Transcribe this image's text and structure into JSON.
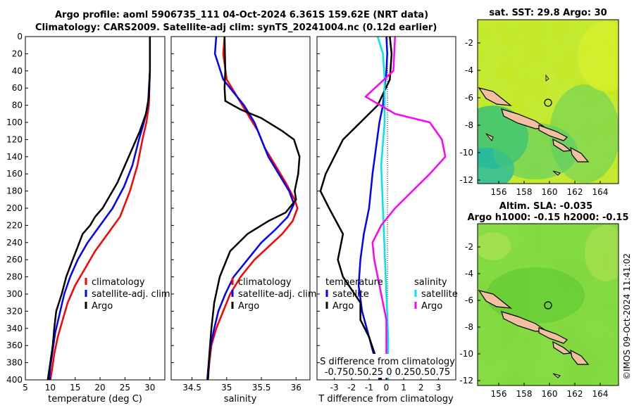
{
  "title": {
    "line1": "Argo profile: aoml 5906735_111 04-Oct-2024 6.361S 159.62E (NRT data)",
    "line2": "Climatology: CARS2009. Satellite-adj clim: synTS_20241004.nc (0.12d earlier)"
  },
  "credit": "©IMOS 09-Oct-2024 11:41:02",
  "colors": {
    "climatology": "#ff0000",
    "satellite": "#0000ff",
    "argo": "#000000",
    "sat_salinity": "#00e5e5",
    "argo_salinity": "#ff00ff"
  },
  "chart_data": [
    {
      "type": "line",
      "id": "temperature",
      "xlabel": "temperature (deg C)",
      "xlim": [
        5,
        33
      ],
      "ylim": [
        400,
        0
      ],
      "xticks": [
        5,
        10,
        15,
        20,
        25,
        30
      ],
      "xtick_labels": [
        "5",
        "10",
        "15",
        "20",
        "25",
        "30"
      ],
      "yticks": [
        0,
        20,
        40,
        60,
        80,
        100,
        120,
        140,
        160,
        180,
        200,
        220,
        240,
        260,
        280,
        300,
        320,
        340,
        360,
        380,
        400
      ],
      "legend": [
        "climatology",
        "satellite-adj. clim",
        "Argo"
      ],
      "series": [
        {
          "name": "climatology",
          "color": "#ff0000",
          "points": [
            [
              30,
              0
            ],
            [
              30,
              40
            ],
            [
              29.8,
              80
            ],
            [
              29.3,
              100
            ],
            [
              28.5,
              120
            ],
            [
              27.5,
              150
            ],
            [
              26,
              180
            ],
            [
              24,
              210
            ],
            [
              21.5,
              230
            ],
            [
              19,
              250
            ],
            [
              17,
              270
            ],
            [
              15,
              290
            ],
            [
              13.5,
              310
            ],
            [
              12.5,
              330
            ],
            [
              11.5,
              350
            ],
            [
              10.8,
              370
            ],
            [
              10.3,
              390
            ],
            [
              10,
              400
            ]
          ]
        },
        {
          "name": "satellite-adj. clim",
          "color": "#0000ff",
          "points": [
            [
              30,
              0
            ],
            [
              30,
              40
            ],
            [
              29.6,
              80
            ],
            [
              28.8,
              100
            ],
            [
              27.8,
              120
            ],
            [
              26.5,
              150
            ],
            [
              24.8,
              175
            ],
            [
              22.5,
              200
            ],
            [
              20,
              220
            ],
            [
              17.5,
              240
            ],
            [
              15.5,
              260
            ],
            [
              14,
              280
            ],
            [
              12.8,
              300
            ],
            [
              12,
              320
            ],
            [
              11,
              345
            ],
            [
              10.5,
              365
            ],
            [
              10,
              385
            ],
            [
              9.8,
              400
            ]
          ]
        },
        {
          "name": "Argo",
          "color": "#000000",
          "points": [
            [
              30,
              0
            ],
            [
              30,
              40
            ],
            [
              29.8,
              70
            ],
            [
              29.2,
              90
            ],
            [
              28,
              110
            ],
            [
              26.5,
              130
            ],
            [
              25,
              150
            ],
            [
              23.5,
              170
            ],
            [
              22,
              185
            ],
            [
              20.5,
              200
            ],
            [
              19,
              210
            ],
            [
              18,
              220
            ],
            [
              16.5,
              230
            ],
            [
              15.5,
              245
            ],
            [
              14.5,
              260
            ],
            [
              13.2,
              280
            ],
            [
              12.3,
              300
            ],
            [
              11.2,
              320
            ],
            [
              10.8,
              340
            ],
            [
              10.5,
              360
            ],
            [
              10,
              380
            ],
            [
              9.5,
              400
            ]
          ]
        }
      ]
    },
    {
      "type": "line",
      "id": "salinity",
      "xlabel": "salinity",
      "xlim": [
        34.2,
        36.2
      ],
      "ylim": [
        400,
        0
      ],
      "xticks": [
        34.5,
        35,
        35.5,
        36
      ],
      "xtick_labels": [
        "34.5",
        "35",
        "35.5",
        "36"
      ],
      "legend": [
        "climatology",
        "satellite-adj. clim",
        "Argo"
      ],
      "series": [
        {
          "name": "climatology",
          "color": "#ff0000",
          "points": [
            [
              34.97,
              0
            ],
            [
              34.95,
              20
            ],
            [
              35.0,
              50
            ],
            [
              35.15,
              70
            ],
            [
              35.3,
              90
            ],
            [
              35.45,
              110
            ],
            [
              35.55,
              130
            ],
            [
              35.7,
              150
            ],
            [
              35.85,
              170
            ],
            [
              35.98,
              190
            ],
            [
              36.02,
              200
            ],
            [
              35.95,
              215
            ],
            [
              35.8,
              230
            ],
            [
              35.6,
              245
            ],
            [
              35.4,
              260
            ],
            [
              35.2,
              280
            ],
            [
              35.05,
              300
            ],
            [
              34.95,
              320
            ],
            [
              34.85,
              340
            ],
            [
              34.78,
              360
            ],
            [
              34.75,
              380
            ],
            [
              34.73,
              400
            ]
          ]
        },
        {
          "name": "satellite-adj. clim",
          "color": "#0000ff",
          "points": [
            [
              34.85,
              0
            ],
            [
              34.83,
              20
            ],
            [
              34.95,
              50
            ],
            [
              35.1,
              65
            ],
            [
              35.25,
              80
            ],
            [
              35.4,
              100
            ],
            [
              35.5,
              120
            ],
            [
              35.6,
              140
            ],
            [
              35.75,
              160
            ],
            [
              35.9,
              180
            ],
            [
              35.97,
              195
            ],
            [
              35.88,
              210
            ],
            [
              35.7,
              225
            ],
            [
              35.5,
              240
            ],
            [
              35.3,
              260
            ],
            [
              35.1,
              280
            ],
            [
              34.98,
              300
            ],
            [
              34.88,
              320
            ],
            [
              34.82,
              340
            ],
            [
              34.77,
              360
            ],
            [
              34.74,
              380
            ],
            [
              34.72,
              400
            ]
          ]
        },
        {
          "name": "Argo",
          "color": "#000000",
          "points": [
            [
              34.97,
              0
            ],
            [
              34.98,
              40
            ],
            [
              34.97,
              60
            ],
            [
              34.98,
              75
            ],
            [
              35.2,
              85
            ],
            [
              35.5,
              95
            ],
            [
              35.8,
              110
            ],
            [
              35.97,
              120
            ],
            [
              36.05,
              140
            ],
            [
              36.03,
              160
            ],
            [
              35.98,
              180
            ],
            [
              36.0,
              190
            ],
            [
              35.85,
              205
            ],
            [
              35.6,
              215
            ],
            [
              35.3,
              230
            ],
            [
              35.05,
              250
            ],
            [
              34.9,
              280
            ],
            [
              34.82,
              310
            ],
            [
              34.78,
              340
            ],
            [
              34.75,
              370
            ],
            [
              34.73,
              400
            ]
          ]
        }
      ]
    },
    {
      "type": "line",
      "id": "difference",
      "xlabel": "T difference from climatology",
      "x2label": "S difference from climatology",
      "xlim": [
        -4,
        4
      ],
      "ylim": [
        400,
        0
      ],
      "xticks": [
        -3,
        -2,
        -1,
        0,
        1,
        2,
        3
      ],
      "xtick_labels": [
        "-3",
        "-2",
        "-1",
        "0",
        "1",
        "2",
        "3"
      ],
      "x2ticks_text": "-0.750.50.25 0 0.250.50.75",
      "legend_temperature": {
        "title": "temperature",
        "items": [
          "satellite",
          "Argo"
        ]
      },
      "legend_salinity": {
        "title": "salinity",
        "items": [
          "satellite",
          "Argo"
        ]
      },
      "series": [
        {
          "name": "T satellite",
          "color": "#0000ff",
          "points": [
            [
              0,
              0
            ],
            [
              0.05,
              20
            ],
            [
              0,
              40
            ],
            [
              -0.1,
              60
            ],
            [
              -0.2,
              80
            ],
            [
              -0.4,
              100
            ],
            [
              -0.6,
              130
            ],
            [
              -0.8,
              160
            ],
            [
              -1,
              200
            ],
            [
              -1.3,
              230
            ],
            [
              -1.5,
              260
            ],
            [
              -1.6,
              290
            ],
            [
              -1.4,
              320
            ],
            [
              -1.0,
              350
            ],
            [
              -0.6,
              380
            ],
            [
              -0.4,
              400
            ]
          ]
        },
        {
          "name": "T Argo",
          "color": "#000000",
          "points": [
            [
              0.2,
              0
            ],
            [
              0.3,
              20
            ],
            [
              0.2,
              50
            ],
            [
              -0.5,
              80
            ],
            [
              -1.5,
              100
            ],
            [
              -2.5,
              120
            ],
            [
              -3.5,
              160
            ],
            [
              -3.8,
              180
            ],
            [
              -3.3,
              200
            ],
            [
              -2.5,
              230
            ],
            [
              -2.8,
              260
            ],
            [
              -2.5,
              280
            ],
            [
              -1.5,
              310
            ],
            [
              -1.5,
              330
            ],
            [
              -1.0,
              350
            ],
            [
              -0.5,
              380
            ],
            [
              -0.3,
              400
            ]
          ]
        },
        {
          "name": "S satellite",
          "color": "#00e5e5",
          "points": [
            [
              -0.5,
              0
            ],
            [
              -0.2,
              20
            ],
            [
              -0.1,
              50
            ],
            [
              -0.1,
              100
            ],
            [
              -0.3,
              150
            ],
            [
              -0.2,
              200
            ],
            [
              -0.1,
              250
            ],
            [
              0,
              300
            ],
            [
              0.1,
              350
            ],
            [
              0.1,
              400
            ]
          ]
        },
        {
          "name": "S Argo",
          "color": "#ff00ff",
          "points": [
            [
              0.5,
              0
            ],
            [
              0.4,
              40
            ],
            [
              -1.2,
              70
            ],
            [
              0.5,
              90
            ],
            [
              2.5,
              100
            ],
            [
              3.2,
              120
            ],
            [
              3.4,
              140
            ],
            [
              2.5,
              160
            ],
            [
              1.5,
              180
            ],
            [
              0.5,
              200
            ],
            [
              -0.3,
              220
            ],
            [
              -0.8,
              240
            ],
            [
              -0.7,
              260
            ],
            [
              -0.5,
              280
            ],
            [
              -0.3,
              300
            ],
            [
              0,
              330
            ],
            [
              0,
              400
            ]
          ]
        }
      ]
    },
    {
      "type": "heatmap",
      "id": "sst_map",
      "title": "sat. SST: 29.8 Argo: 30",
      "xticks": [
        "156",
        "158",
        "160",
        "162",
        "164"
      ],
      "yticks": [
        "-2",
        "-4",
        "-6",
        "-8",
        "-10",
        "-12"
      ]
    },
    {
      "type": "heatmap",
      "id": "sla_map",
      "title_line1": "Altim. SLA: -0.035",
      "title_line2": "Argo h1000: -0.15 h2000: -0.15",
      "xticks": [
        "156",
        "158",
        "160",
        "162",
        "164"
      ],
      "yticks": [
        "-2",
        "-4",
        "-6",
        "-8",
        "-10",
        "-12"
      ]
    }
  ]
}
